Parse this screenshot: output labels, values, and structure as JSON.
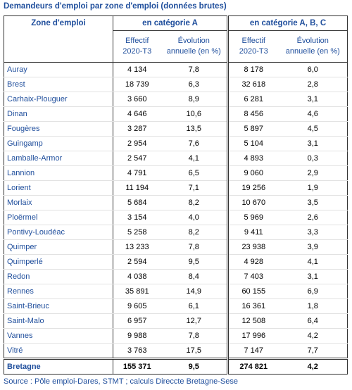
{
  "title": "Demandeurs d'emploi par zone d'emploi (données brutes)",
  "table": {
    "zone_header": "Zone d'emploi",
    "groups": [
      "en catégorie A",
      "en catégorie A, B, C"
    ],
    "subheaders": [
      [
        "Effectif",
        "2020-T3"
      ],
      [
        "Évolution",
        "annuelle (en %)"
      ],
      [
        "Effectif",
        "2020-T3"
      ],
      [
        "Évolution",
        "annuelle (en %)"
      ]
    ],
    "rows": [
      [
        "Auray",
        "4 134",
        "7,8",
        "8 178",
        "6,0"
      ],
      [
        "Brest",
        "18 739",
        "6,3",
        "32 618",
        "2,8"
      ],
      [
        "Carhaix-Plouguer",
        "3 660",
        "8,9",
        "6 281",
        "3,1"
      ],
      [
        "Dinan",
        "4 646",
        "10,6",
        "8 456",
        "4,6"
      ],
      [
        "Fougères",
        "3 287",
        "13,5",
        "5 897",
        "4,5"
      ],
      [
        "Guingamp",
        "2 954",
        "7,6",
        "5 104",
        "3,1"
      ],
      [
        "Lamballe-Armor",
        "2 547",
        "4,1",
        "4 893",
        "0,3"
      ],
      [
        "Lannion",
        "4 791",
        "6,5",
        "9 060",
        "2,9"
      ],
      [
        "Lorient",
        "11 194",
        "7,1",
        "19 256",
        "1,9"
      ],
      [
        "Morlaix",
        "5 684",
        "8,2",
        "10 670",
        "3,5"
      ],
      [
        "Ploërmel",
        "3 154",
        "4,0",
        "5 969",
        "2,6"
      ],
      [
        "Pontivy-Loudéac",
        "5 258",
        "8,2",
        "9 411",
        "3,3"
      ],
      [
        "Quimper",
        "13 233",
        "7,8",
        "23 938",
        "3,9"
      ],
      [
        "Quimperlé",
        "2 594",
        "9,5",
        "4 928",
        "4,1"
      ],
      [
        "Redon",
        "4 038",
        "8,4",
        "7 403",
        "3,1"
      ],
      [
        "Rennes",
        "35 891",
        "14,9",
        "60 155",
        "6,9"
      ],
      [
        "Saint-Brieuc",
        "9 605",
        "6,1",
        "16 361",
        "1,8"
      ],
      [
        "Saint-Malo",
        "6 957",
        "12,7",
        "12 508",
        "6,4"
      ],
      [
        "Vannes",
        "9 988",
        "7,8",
        "17 996",
        "4,2"
      ],
      [
        "Vitré",
        "3 763",
        "17,5",
        "7 147",
        "7,7"
      ]
    ],
    "total": [
      "Bretagne",
      "155 371",
      "9,5",
      "274 821",
      "4,2"
    ]
  },
  "source": "Source : Pôle emploi-Dares, STMT ; calculs Direccte Bretagne-Sese"
}
